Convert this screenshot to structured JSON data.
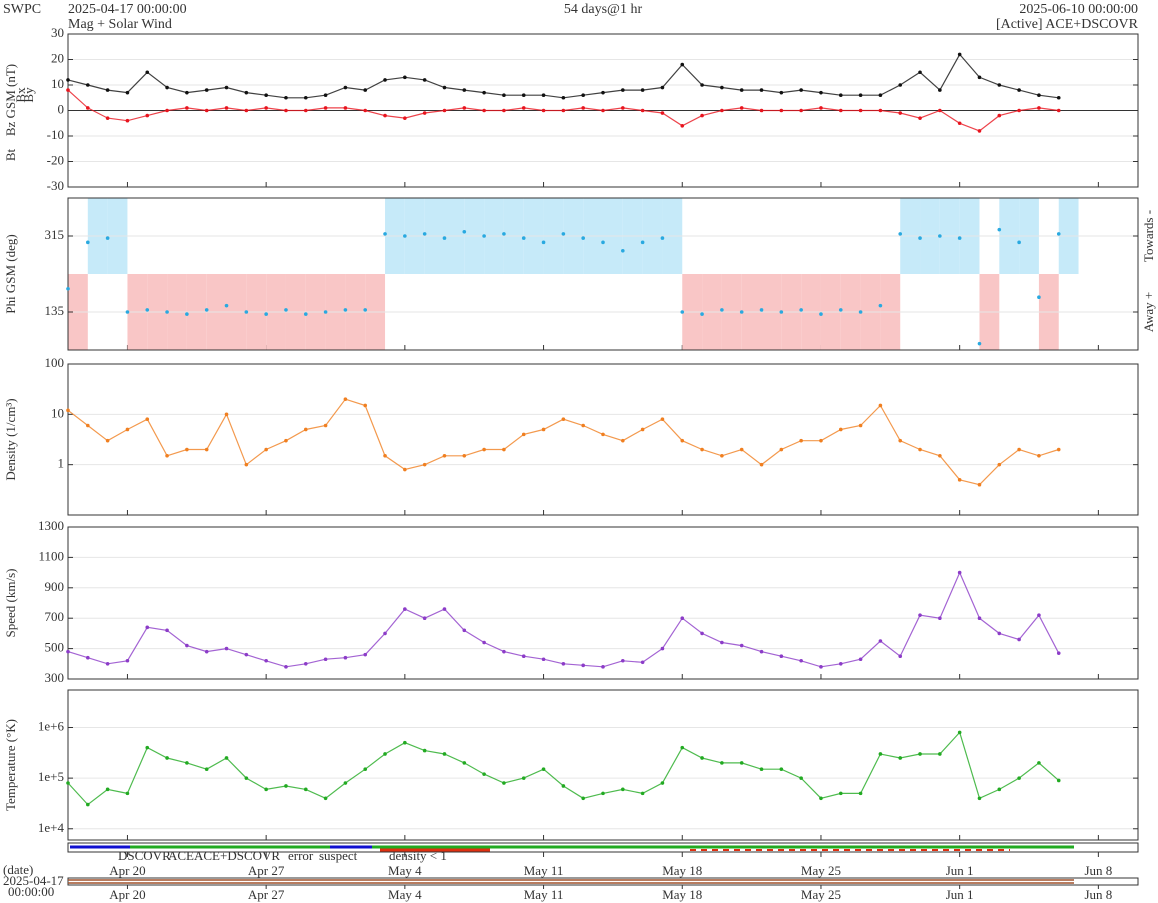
{
  "header": {
    "site": "SWPC",
    "product": "Mag + Solar Wind",
    "span": "54 days@1 hr",
    "source": "[Active] ACE+DSCOVR"
  },
  "time_axis": {
    "xlim": [
      "2025-04-17 00:00:00",
      "2025-06-10 00:00:00"
    ],
    "xticks": [
      {
        "value": "2025-04-20",
        "label": "Apr 20"
      },
      {
        "value": "2025-04-27",
        "label": "Apr 27"
      },
      {
        "value": "2025-05-04",
        "label": "May 4"
      },
      {
        "value": "2025-05-11",
        "label": "May 11"
      },
      {
        "value": "2025-05-18",
        "label": "May 18"
      },
      {
        "value": "2025-05-25",
        "label": "May 25"
      },
      {
        "value": "2025-06-01",
        "label": "Jun 1"
      },
      {
        "value": "2025-06-08",
        "label": "Jun 8"
      }
    ],
    "x": [
      "2025-04-17",
      "2025-04-18",
      "2025-04-19",
      "2025-04-20",
      "2025-04-21",
      "2025-04-22",
      "2025-04-23",
      "2025-04-24",
      "2025-04-25",
      "2025-04-26",
      "2025-04-27",
      "2025-04-28",
      "2025-04-29",
      "2025-04-30",
      "2025-05-01",
      "2025-05-02",
      "2025-05-03",
      "2025-05-04",
      "2025-05-05",
      "2025-05-06",
      "2025-05-07",
      "2025-05-08",
      "2025-05-09",
      "2025-05-10",
      "2025-05-11",
      "2025-05-12",
      "2025-05-13",
      "2025-05-14",
      "2025-05-15",
      "2025-05-16",
      "2025-05-17",
      "2025-05-18",
      "2025-05-19",
      "2025-05-20",
      "2025-05-21",
      "2025-05-22",
      "2025-05-23",
      "2025-05-24",
      "2025-05-25",
      "2025-05-26",
      "2025-05-27",
      "2025-05-28",
      "2025-05-29",
      "2025-05-30",
      "2025-05-31",
      "2025-06-01",
      "2025-06-02",
      "2025-06-03",
      "2025-06-04",
      "2025-06-05",
      "2025-06-06"
    ]
  },
  "chart_data": [
    {
      "type": "line",
      "ylim": [
        -30,
        30
      ],
      "yticks": [
        -30,
        -20,
        -10,
        0,
        10,
        20,
        30
      ],
      "grid": true,
      "ylabels": [
        {
          "text": "Bt",
          "color": "#000000"
        },
        {
          "text": "Bz GSM (nT)",
          "color": "#e8141e"
        },
        {
          "text": "Bx",
          "color": "#8c3cc8"
        },
        {
          "text": "By",
          "color": "#29a9e0"
        }
      ],
      "series": [
        {
          "color": "#111111",
          "values": [
            12,
            10,
            8,
            7,
            15,
            9,
            7,
            8,
            9,
            7,
            6,
            5,
            5,
            6,
            9,
            8,
            12,
            13,
            12,
            9,
            8,
            7,
            6,
            6,
            6,
            5,
            6,
            7,
            8,
            8,
            9,
            18,
            10,
            9,
            8,
            8,
            7,
            8,
            7,
            6,
            6,
            6,
            10,
            15,
            8,
            22,
            13,
            10,
            8,
            6,
            5
          ]
        },
        {
          "color": "#e8141e",
          "values": [
            8,
            1,
            -3,
            -4,
            -2,
            0,
            1,
            0,
            1,
            0,
            1,
            0,
            0,
            1,
            1,
            0,
            -2,
            -3,
            -1,
            0,
            1,
            0,
            0,
            1,
            0,
            0,
            1,
            0,
            1,
            0,
            -1,
            -6,
            -2,
            0,
            1,
            0,
            0,
            0,
            1,
            0,
            0,
            0,
            -1,
            -3,
            0,
            -5,
            -8,
            -2,
            0,
            1,
            0
          ]
        }
      ]
    },
    {
      "type": "scatter",
      "ylim": [
        45,
        405
      ],
      "yticks": [
        135,
        315
      ],
      "grid": true,
      "ylabels": [
        {
          "text": "Phi GSM (deg)",
          "color": "#29a9e0"
        }
      ],
      "side_labels": [
        "Towards -",
        "Away +"
      ],
      "above_color": "#c6eaf9",
      "below_color": "#f9c6c6",
      "series": [
        {
          "color": "#29a9e0",
          "values": [
            190,
            300,
            310,
            135,
            140,
            135,
            130,
            140,
            150,
            135,
            130,
            140,
            130,
            135,
            140,
            140,
            320,
            315,
            320,
            310,
            325,
            315,
            320,
            310,
            300,
            320,
            310,
            300,
            280,
            300,
            310,
            135,
            130,
            140,
            135,
            140,
            135,
            140,
            130,
            140,
            135,
            150,
            320,
            310,
            315,
            310,
            60,
            330,
            300,
            170,
            320
          ]
        }
      ]
    },
    {
      "type": "line",
      "log": true,
      "ylim": [
        0.1,
        100
      ],
      "yticks": [
        1,
        10,
        100
      ],
      "grid": true,
      "ylabels": [
        {
          "text": "Density (1/cm³)",
          "color": "#f07f20"
        }
      ],
      "series": [
        {
          "color": "#f07f20",
          "values": [
            12,
            6,
            3,
            5,
            8,
            1.5,
            2,
            2,
            10,
            1,
            2,
            3,
            5,
            6,
            20,
            15,
            1.5,
            0.8,
            1,
            1.5,
            1.5,
            2,
            2,
            4,
            5,
            8,
            6,
            4,
            3,
            5,
            8,
            3,
            2,
            1.5,
            2,
            1,
            2,
            3,
            3,
            5,
            6,
            15,
            3,
            2,
            1.5,
            0.5,
            0.4,
            1,
            2,
            1.5,
            2
          ]
        }
      ]
    },
    {
      "type": "line",
      "ylim": [
        300,
        1300
      ],
      "yticks": [
        300,
        500,
        700,
        900,
        1100,
        1300
      ],
      "grid": true,
      "ylabels": [
        {
          "text": "Speed (km/s)",
          "color": "#8c3cc8"
        }
      ],
      "series": [
        {
          "color": "#8c3cc8",
          "values": [
            480,
            440,
            400,
            420,
            640,
            620,
            520,
            480,
            500,
            460,
            420,
            380,
            400,
            430,
            440,
            460,
            600,
            760,
            700,
            760,
            620,
            540,
            480,
            450,
            430,
            400,
            390,
            380,
            420,
            410,
            500,
            700,
            600,
            540,
            520,
            480,
            450,
            420,
            380,
            400,
            430,
            550,
            450,
            720,
            700,
            1000,
            700,
            600,
            560,
            720,
            470
          ]
        }
      ]
    },
    {
      "type": "line",
      "log": true,
      "ylim": [
        6000,
        5500000
      ],
      "yticks": [
        {
          "value": 10000,
          "label": "1e+4"
        },
        {
          "value": 100000,
          "label": "1e+5"
        },
        {
          "value": 1000000,
          "label": "1e+6"
        }
      ],
      "grid": true,
      "ylabels": [
        {
          "text": "Temperature (°K)",
          "color": "#22aa22"
        }
      ],
      "series": [
        {
          "color": "#22aa22",
          "values": [
            80000,
            30000,
            60000,
            50000,
            400000,
            250000,
            200000,
            150000,
            250000,
            100000,
            60000,
            70000,
            60000,
            40000,
            80000,
            150000,
            300000,
            500000,
            350000,
            300000,
            200000,
            120000,
            80000,
            100000,
            150000,
            70000,
            40000,
            50000,
            60000,
            50000,
            80000,
            400000,
            250000,
            200000,
            200000,
            150000,
            150000,
            100000,
            40000,
            50000,
            50000,
            300000,
            250000,
            300000,
            300000,
            800000,
            40000,
            60000,
            100000,
            200000,
            90000
          ]
        }
      ]
    }
  ],
  "source_legend": [
    {
      "text": "DSCOVR",
      "color": "#1010d0"
    },
    {
      "text": "ACE",
      "color": "#22aa22"
    },
    {
      "text": "ACE+DSCOVR",
      "color": "#e020e0"
    },
    {
      "text": "error",
      "color": "#e8141e"
    },
    {
      "text": "suspect",
      "color": "#e0b000"
    },
    {
      "text": "density < 1",
      "color": "#f07f20"
    }
  ],
  "footer": {
    "label": "(date)",
    "date": "2025-04-17",
    "time": "00:00:00"
  }
}
